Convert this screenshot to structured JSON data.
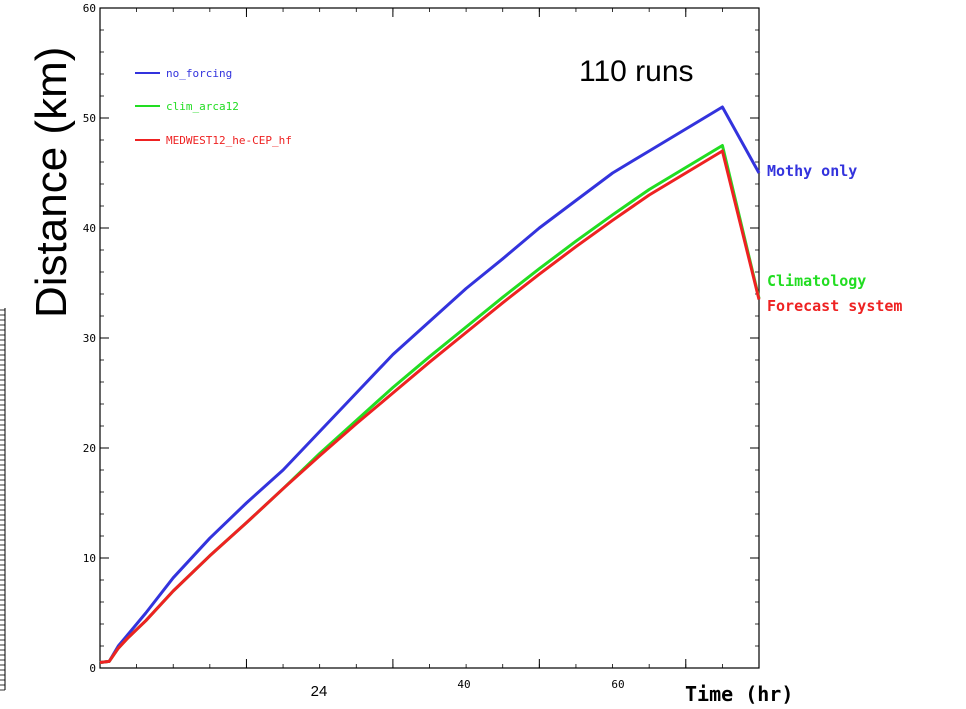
{
  "chart_data": {
    "type": "line",
    "xlabel": "Time (hr)",
    "ylabel": "Distance (km)",
    "annotation": "110 runs",
    "xlim": [
      0,
      72
    ],
    "ylim": [
      0,
      60
    ],
    "x_ticks": [
      {
        "value": 24,
        "label": "24",
        "style": "large"
      },
      {
        "value": 40,
        "label": "40",
        "style": "small"
      },
      {
        "value": 60,
        "label": "60",
        "style": "small"
      }
    ],
    "y_ticks": [
      {
        "value": 0,
        "label": "0"
      },
      {
        "value": 10,
        "label": "10"
      },
      {
        "value": 20,
        "label": "20"
      },
      {
        "value": 30,
        "label": "30"
      },
      {
        "value": 40,
        "label": "40"
      },
      {
        "value": 50,
        "label": "50"
      },
      {
        "value": 60,
        "label": "60"
      }
    ],
    "grid": false,
    "legend_position": "top-left",
    "series": [
      {
        "name": "no_forcing",
        "end_label": "Mothy only",
        "color": "#3333dd",
        "x": [
          0,
          1,
          2,
          3,
          5,
          8,
          12,
          16,
          20,
          24,
          28,
          32,
          36,
          40,
          44,
          48,
          52,
          56,
          60,
          64,
          68,
          72
        ],
        "y": [
          0.5,
          0.6,
          2.0,
          3.0,
          5.0,
          8.2,
          11.8,
          15.0,
          18.0,
          21.5,
          25.0,
          28.5,
          31.5,
          34.5,
          37.2,
          40.0,
          42.5,
          45.0,
          47.0,
          49.0,
          51.0,
          45.0
        ]
      },
      {
        "name": "clim_arca12",
        "end_label": "Climatology",
        "color": "#22dd22",
        "x": [
          0,
          1,
          2,
          3,
          5,
          8,
          12,
          16,
          20,
          24,
          28,
          32,
          36,
          40,
          44,
          48,
          52,
          56,
          60,
          64,
          68,
          72
        ],
        "y": [
          0.5,
          0.6,
          1.8,
          2.7,
          4.3,
          7.0,
          10.2,
          13.2,
          16.3,
          19.5,
          22.5,
          25.5,
          28.3,
          31.0,
          33.7,
          36.3,
          38.8,
          41.2,
          43.5,
          45.5,
          47.5,
          33.6
        ]
      },
      {
        "name": "MEDWEST12_he-CEP_hf",
        "end_label": "Forecast system",
        "color": "#ee2222",
        "x": [
          0,
          1,
          2,
          3,
          5,
          8,
          12,
          16,
          20,
          24,
          28,
          32,
          36,
          40,
          44,
          48,
          52,
          56,
          60,
          64,
          68,
          72
        ],
        "y": [
          0.5,
          0.6,
          1.8,
          2.7,
          4.3,
          7.0,
          10.2,
          13.2,
          16.3,
          19.3,
          22.2,
          25.0,
          27.8,
          30.5,
          33.2,
          35.8,
          38.3,
          40.7,
          43.0,
          45.0,
          47.0,
          33.5
        ]
      }
    ]
  }
}
